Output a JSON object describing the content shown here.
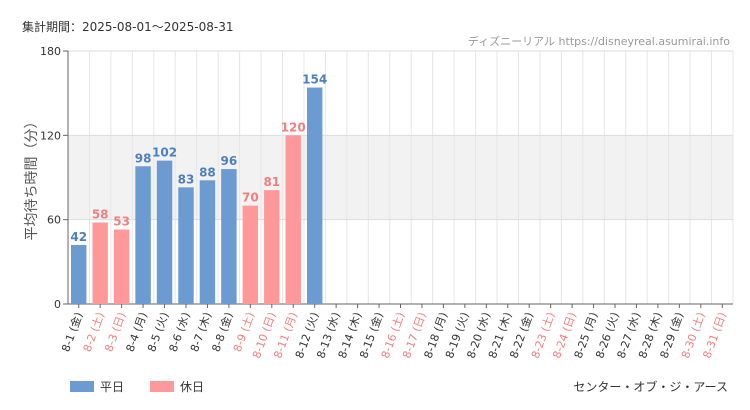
{
  "header": {
    "period_label": "集計期間：2025-08-01～2025-08-31",
    "credit": "ディズニーリアル https://disneyreal.asumirai.info"
  },
  "legend": {
    "weekday_label": "平日",
    "holiday_label": "休日"
  },
  "footer": {
    "attraction": "センター・オブ・ジ・アース"
  },
  "colors": {
    "weekday": "#6b9bd1",
    "holiday": "#ff9999",
    "weekday_text": "#4e7fbf",
    "holiday_text": "#f07f7f",
    "band": "#f2f2f2"
  },
  "chart_data": {
    "type": "bar",
    "ylabel": "平均待ち時間（分）",
    "ylim": [
      0,
      180
    ],
    "yticks": [
      0,
      60,
      120,
      180
    ],
    "grid": true,
    "shaded_band": [
      60,
      120
    ],
    "categories": [
      "8-1 (金)",
      "8-2 (土)",
      "8-3 (日)",
      "8-4 (月)",
      "8-5 (火)",
      "8-6 (水)",
      "8-7 (木)",
      "8-8 (金)",
      "8-9 (土)",
      "8-10 (日)",
      "8-11 (月)",
      "8-12 (火)",
      "8-13 (水)",
      "8-14 (木)",
      "8-15 (金)",
      "8-16 (土)",
      "8-17 (日)",
      "8-18 (月)",
      "8-19 (火)",
      "8-20 (水)",
      "8-21 (木)",
      "8-22 (金)",
      "8-23 (土)",
      "8-24 (日)",
      "8-25 (月)",
      "8-26 (火)",
      "8-27 (水)",
      "8-28 (木)",
      "8-29 (金)",
      "8-30 (土)",
      "8-31 (日)"
    ],
    "values": [
      42,
      58,
      53,
      98,
      102,
      83,
      88,
      96,
      70,
      81,
      120,
      154,
      null,
      null,
      null,
      null,
      null,
      null,
      null,
      null,
      null,
      null,
      null,
      null,
      null,
      null,
      null,
      null,
      null,
      null,
      null
    ],
    "holiday": [
      false,
      true,
      true,
      false,
      false,
      false,
      false,
      false,
      true,
      true,
      true,
      false,
      false,
      false,
      false,
      true,
      true,
      false,
      false,
      false,
      false,
      false,
      true,
      true,
      false,
      false,
      false,
      false,
      false,
      true,
      true
    ]
  }
}
